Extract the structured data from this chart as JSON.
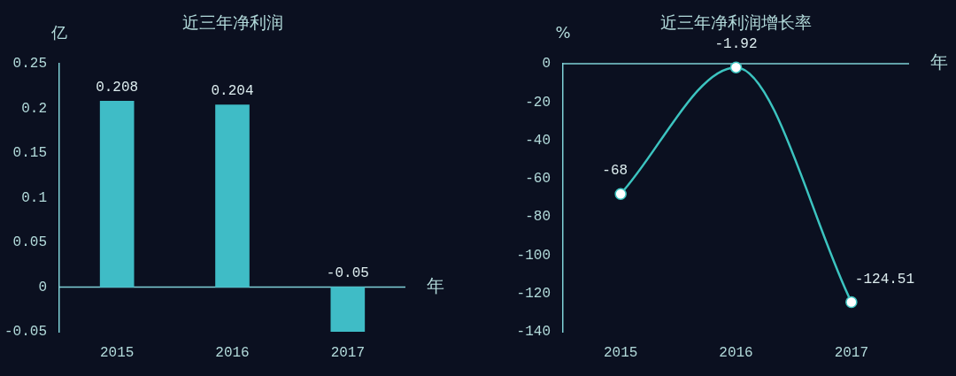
{
  "chart_data": [
    {
      "type": "bar",
      "title": "近三年净利润",
      "ylabel": "亿",
      "xlabel": "年",
      "categories": [
        "2015",
        "2016",
        "2017"
      ],
      "values": [
        0.208,
        0.204,
        -0.05
      ],
      "color": "#3fbcc6",
      "ylim": [
        -0.05,
        0.25
      ],
      "yticks": [
        -0.05,
        0,
        0.05,
        0.1,
        0.15,
        0.2,
        0.25
      ],
      "data_labels": true,
      "ref_lines": [
        {
          "axis": "y",
          "value": 0,
          "color": "#7fd0d6"
        }
      ]
    },
    {
      "type": "line",
      "title": "近三年净利润增长率",
      "ylabel": "%",
      "xlabel": "年",
      "categories": [
        "2015",
        "2016",
        "2017"
      ],
      "values": [
        -68,
        -1.92,
        -124.51
      ],
      "color": "#3cc4c0",
      "ylim": [
        -140,
        0
      ],
      "yticks": [
        -140,
        -120,
        -100,
        -80,
        -60,
        -40,
        -20,
        0
      ],
      "marker": "circle",
      "data_labels": true,
      "ref_lines": [
        {
          "axis": "y",
          "value": 0,
          "color": "#7fd0d6"
        }
      ]
    }
  ]
}
